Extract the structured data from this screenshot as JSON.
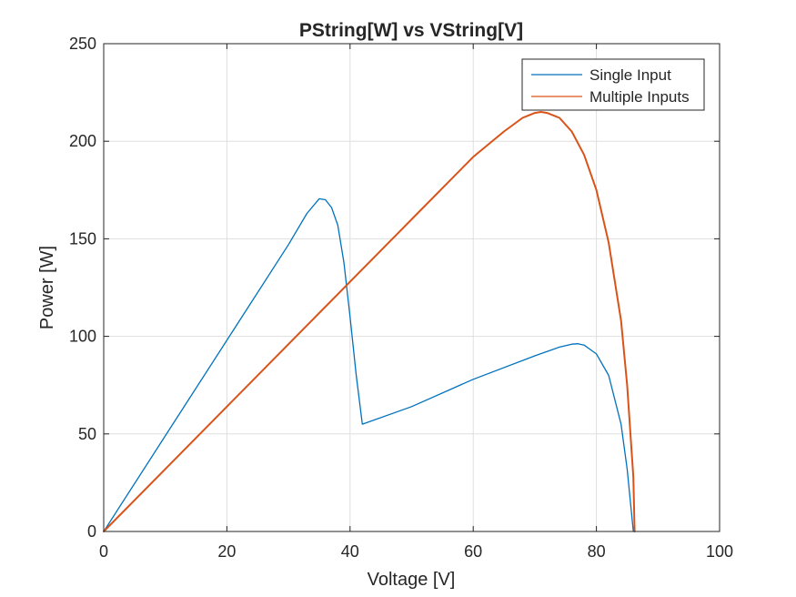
{
  "chart_data": {
    "type": "line",
    "title": "PString[W] vs VString[V]",
    "xlabel": "Voltage [V]",
    "ylabel": "Power [W]",
    "xlim": [
      0,
      100
    ],
    "ylim": [
      0,
      250
    ],
    "xticks": [
      0,
      20,
      40,
      60,
      80,
      100
    ],
    "yticks": [
      0,
      50,
      100,
      150,
      200,
      250
    ],
    "xtick_labels": [
      "0",
      "20",
      "40",
      "60",
      "80",
      "100"
    ],
    "ytick_labels": [
      "0",
      "50",
      "100",
      "150",
      "200",
      "250"
    ],
    "grid": true,
    "legend_position": "top-right",
    "series": [
      {
        "name": "Single Input",
        "color": "#0072BD",
        "x": [
          0,
          10,
          20,
          30,
          33,
          35,
          36,
          37,
          38,
          39,
          40,
          41,
          42,
          50,
          60,
          70,
          74,
          76,
          77,
          78,
          80,
          82,
          84,
          85,
          85.5,
          86
        ],
        "y": [
          0,
          49,
          98,
          147,
          163,
          170.5,
          170,
          166,
          157,
          138,
          110,
          80,
          55,
          64,
          78,
          90,
          94.5,
          96,
          96.2,
          95.5,
          91,
          80,
          55,
          32,
          16,
          0
        ]
      },
      {
        "name": "Multiple Inputs",
        "color": "#D95319",
        "x": [
          0,
          10,
          20,
          30,
          40,
          50,
          60,
          65,
          68,
          70,
          71,
          72,
          74,
          76,
          78,
          80,
          82,
          84,
          85,
          86,
          86.2
        ],
        "y": [
          0,
          32,
          64,
          96,
          128,
          160,
          192,
          205,
          212,
          214.5,
          215,
          214.5,
          212,
          205,
          193,
          175,
          148,
          108,
          75,
          28,
          0
        ]
      }
    ]
  }
}
